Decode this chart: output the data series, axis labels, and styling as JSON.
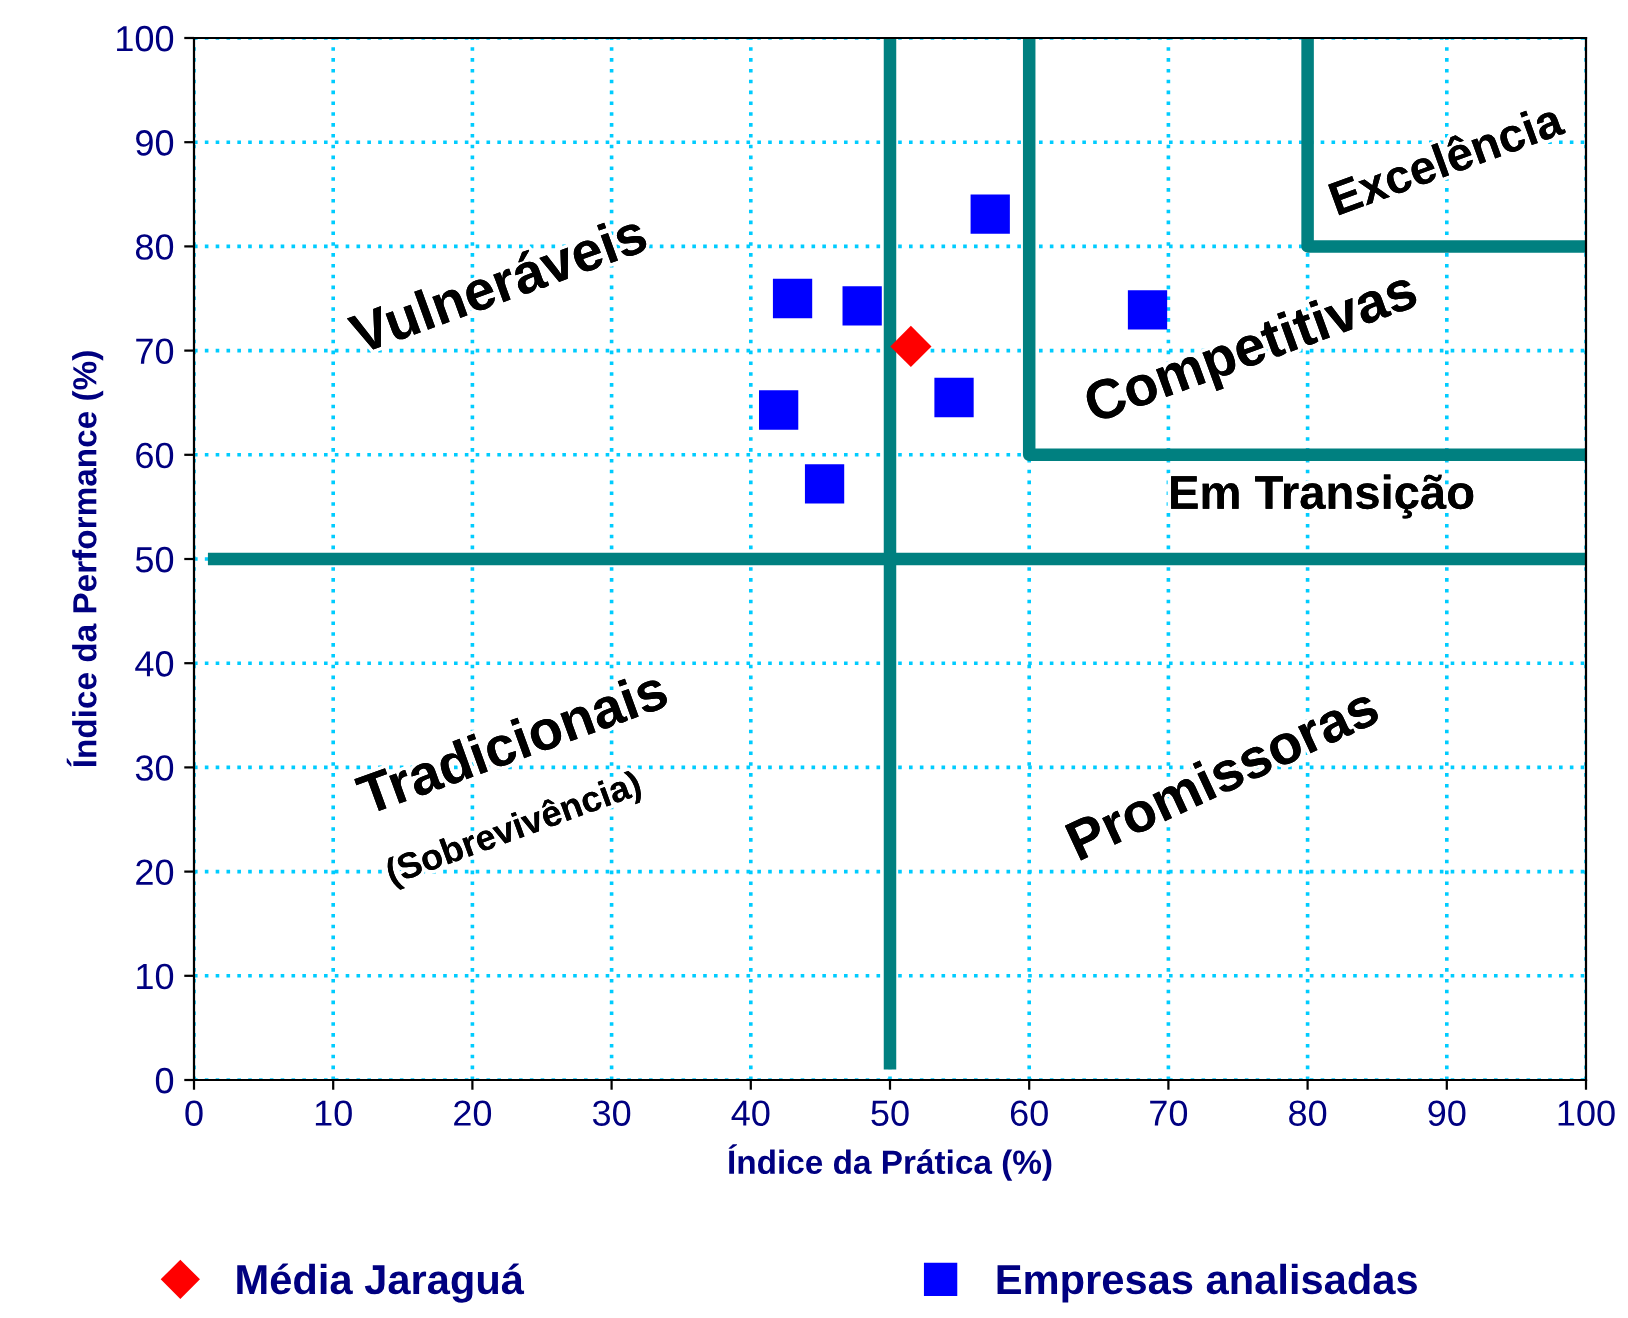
{
  "chart_data": {
    "type": "scatter",
    "xlabel": "Índice da Prática (%)",
    "ylabel": "Índice da Performance (%)",
    "xlim": [
      0,
      100
    ],
    "ylim": [
      0,
      100
    ],
    "xticks": [
      0,
      10,
      20,
      30,
      40,
      50,
      60,
      70,
      80,
      90,
      100
    ],
    "yticks": [
      0,
      10,
      20,
      30,
      40,
      50,
      60,
      70,
      80,
      90,
      100
    ],
    "grid": true,
    "legend": "bottom",
    "series": [
      {
        "type": "line",
        "color": "#008080",
        "x": [
          1,
          100
        ],
        "values": [
          50,
          50
        ],
        "marker": "none"
      },
      {
        "type": "line",
        "color": "#008080",
        "x": [
          50,
          50
        ],
        "values": [
          1,
          100
        ],
        "marker": "none"
      },
      {
        "type": "line",
        "color": "#008080",
        "x": [
          60,
          60,
          100
        ],
        "values": [
          100,
          60,
          60
        ],
        "marker": "none"
      },
      {
        "type": "line",
        "color": "#008080",
        "x": [
          80,
          80,
          100
        ],
        "values": [
          100,
          80,
          80
        ],
        "marker": "none"
      },
      {
        "name": "Média Jaraguá",
        "color": "#ff0000",
        "marker": "diamond",
        "x": [
          51.5
        ],
        "values": [
          70.4
        ]
      },
      {
        "name": "Empresas analisadas",
        "color": "#0000ff",
        "marker": "square",
        "x": [
          43,
          48,
          42,
          45.3,
          54.6,
          57.2,
          68.5
        ],
        "values": [
          75,
          74.3,
          64.3,
          57.2,
          65.5,
          83.1,
          73.9
        ]
      }
    ],
    "annotations": [
      "Vulneráveis",
      "Tradicionais",
      "(Sobrevivência)",
      "Promissoras",
      "Competitivas",
      "Em Transição",
      "Excelência"
    ]
  }
}
